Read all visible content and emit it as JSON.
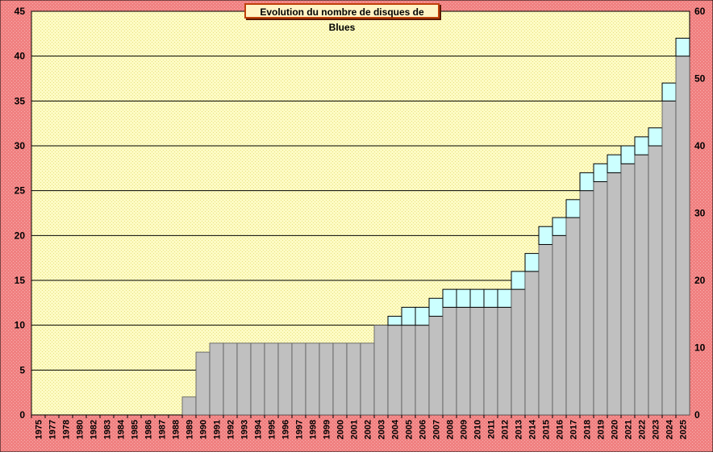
{
  "chart_data": {
    "type": "bar",
    "title": "Evolution  du  nombre de disques de Blues",
    "xlabel": "",
    "ylabel": "",
    "categories": [
      "1975",
      "1977",
      "1978",
      "1980",
      "1982",
      "1983",
      "1984",
      "1985",
      "1986",
      "1987",
      "1988",
      "1989",
      "1990",
      "1991",
      "1992",
      "1993",
      "1994",
      "1995",
      "1996",
      "1997",
      "1998",
      "1999",
      "2000",
      "2001",
      "2002",
      "2003",
      "2004",
      "2005",
      "2006",
      "2007",
      "2008",
      "2009",
      "2010",
      "2011",
      "2012",
      "2013",
      "2014",
      "2015",
      "2016",
      "2017",
      "2018",
      "2019",
      "2020",
      "2021",
      "2022",
      "2023",
      "2024",
      "2025"
    ],
    "series": [
      {
        "values": [
          0,
          0,
          0,
          0,
          0,
          0,
          0,
          0,
          0,
          0,
          0,
          2,
          7,
          8,
          8,
          8,
          8,
          8,
          8,
          8,
          8,
          8,
          8,
          8,
          8,
          10,
          10,
          10,
          10,
          11,
          12,
          12,
          12,
          12,
          12,
          14,
          16,
          19,
          20,
          22,
          25,
          26,
          27,
          28,
          29,
          30,
          35,
          40
        ]
      },
      {
        "values": [
          0,
          0,
          0,
          0,
          0,
          0,
          0,
          0,
          0,
          0,
          0,
          0,
          0,
          0,
          0,
          0,
          0,
          0,
          0,
          0,
          0,
          0,
          0,
          0,
          0,
          0,
          1,
          2,
          2,
          2,
          2,
          2,
          2,
          2,
          2,
          2,
          2,
          2,
          2,
          2,
          2,
          2,
          2,
          2,
          2,
          2,
          2,
          2
        ]
      }
    ],
    "ylim": [
      0,
      45
    ],
    "y2lim": [
      0,
      60
    ],
    "yticks": [
      0,
      5,
      10,
      15,
      20,
      25,
      30,
      35,
      40,
      45
    ],
    "y2ticks": [
      0,
      10,
      20,
      30,
      40,
      50,
      60
    ],
    "grid": true,
    "colors": {
      "frame": "#f08080",
      "plot_bg": "#fdfbc4",
      "bar_base": "#c0c0c0",
      "bar_top": "#ccffff",
      "gridline": "#000000",
      "title_border": "#c0400a"
    }
  }
}
